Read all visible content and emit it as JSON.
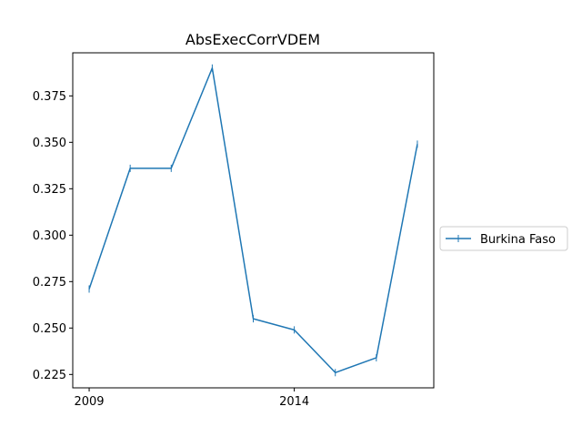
{
  "chart_data": {
    "type": "line",
    "title": "AbsExecCorrVDEM",
    "xlabel": "",
    "ylabel": "",
    "x": [
      2009,
      2010,
      2011,
      2012,
      2013,
      2014,
      2015,
      2016,
      2017
    ],
    "series": [
      {
        "name": "Burkina Faso",
        "values": [
          0.271,
          0.336,
          0.336,
          0.39,
          0.255,
          0.249,
          0.226,
          0.234,
          0.349
        ],
        "color": "#1f77b4"
      }
    ],
    "xticks": [
      2009,
      2014
    ],
    "xtick_labels": [
      "2009",
      "2014"
    ],
    "yticks": [
      0.225,
      0.25,
      0.275,
      0.3,
      0.325,
      0.35,
      0.375
    ],
    "ytick_labels": [
      "0.225",
      "0.250",
      "0.275",
      "0.300",
      "0.325",
      "0.350",
      "0.375"
    ],
    "xlim": [
      2008.6,
      2017.4
    ],
    "ylim": [
      0.2178,
      0.3982
    ],
    "grid": false,
    "legend_position": "outside-right"
  }
}
